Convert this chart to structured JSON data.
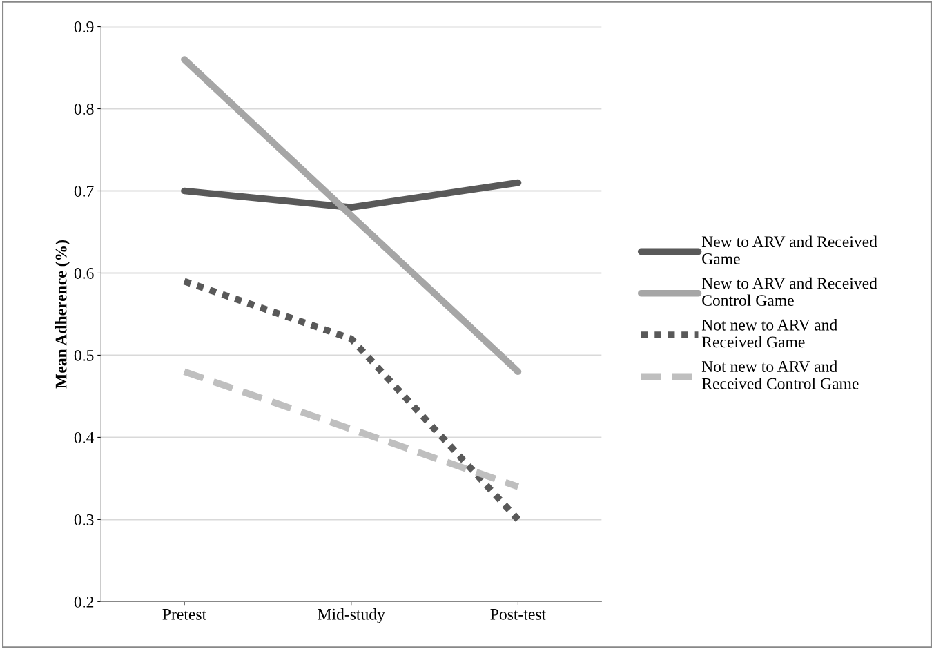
{
  "chart_data": {
    "type": "line",
    "ylabel": "Mean Adherence (%)",
    "categories": [
      "Pretest",
      "Mid-study",
      "Post-test"
    ],
    "series": [
      {
        "name": "New to ARV and Received Game",
        "color": "#595959",
        "line_style": "solid",
        "values": [
          0.7,
          0.68,
          0.71
        ]
      },
      {
        "name": "New to ARV and Received Control Game",
        "color": "#a6a6a6",
        "line_style": "solid",
        "values": [
          0.86,
          0.67,
          0.48
        ]
      },
      {
        "name": "Not new to ARV and Received Game",
        "color": "#595959",
        "line_style": "dotted",
        "values": [
          0.59,
          0.52,
          0.3
        ]
      },
      {
        "name": "Not new to ARV and Received Control Game",
        "color": "#bfbfbf",
        "line_style": "dashed",
        "values": [
          0.48,
          0.41,
          0.34
        ]
      }
    ],
    "ylim": [
      0.2,
      0.9
    ],
    "yticks": [
      0.2,
      0.3,
      0.4,
      0.5,
      0.6,
      0.7,
      0.8,
      0.9
    ],
    "grid": "y",
    "legend": "right",
    "marker": "none"
  }
}
